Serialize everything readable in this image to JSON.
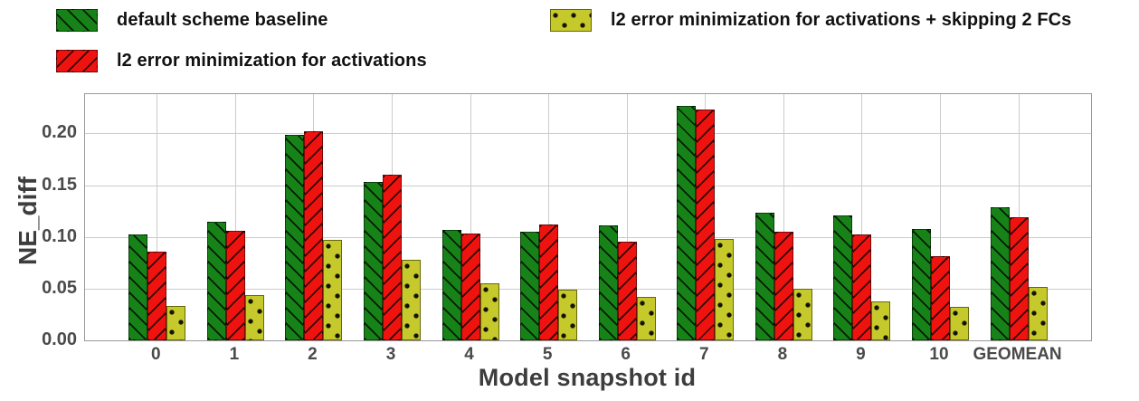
{
  "colors": {
    "baseline_green": "#178217",
    "l2_red": "#ef1310",
    "l2skip_yellow": "#c6c92c",
    "grid": "#cccccc",
    "spine": "#999999",
    "tick_text": "#4a4a4a",
    "axis_text": "#3d3d3d",
    "legend_text": "#111111"
  },
  "legend": {
    "items": [
      {
        "label": "default scheme baseline",
        "series": "baseline",
        "swatch": "green-backslash-hatch"
      },
      {
        "label": "l2 error minimization for activations",
        "series": "l2",
        "swatch": "red-slash-hatch"
      },
      {
        "label": "l2 error minimization for activations + skipping 2 FCs",
        "series": "l2_skip",
        "swatch": "yellow-dots"
      }
    ]
  },
  "chart_data": {
    "type": "bar",
    "title": "",
    "xlabel": "Model snapshot id",
    "ylabel": "NE_diff",
    "categories": [
      "0",
      "1",
      "2",
      "3",
      "4",
      "5",
      "6",
      "7",
      "8",
      "9",
      "10",
      "GEOMEAN"
    ],
    "series": [
      {
        "name": "default scheme baseline",
        "values": [
          0.102,
          0.115,
          0.199,
          0.153,
          0.107,
          0.105,
          0.111,
          0.227,
          0.123,
          0.121,
          0.108,
          0.129
        ]
      },
      {
        "name": "l2 error minimization for activations",
        "values": [
          0.086,
          0.106,
          0.202,
          0.16,
          0.103,
          0.112,
          0.095,
          0.223,
          0.105,
          0.102,
          0.081,
          0.119
        ]
      },
      {
        "name": "l2 error minimization for activations + skipping 2 FCs",
        "values": [
          0.033,
          0.044,
          0.097,
          0.078,
          0.055,
          0.049,
          0.042,
          0.098,
          0.05,
          0.038,
          0.032,
          0.052
        ]
      }
    ],
    "yticks": [
      "0.00",
      "0.05",
      "0.10",
      "0.15",
      "0.20"
    ],
    "ylim": [
      0,
      0.238
    ],
    "grid": true,
    "legend_position": "top"
  }
}
